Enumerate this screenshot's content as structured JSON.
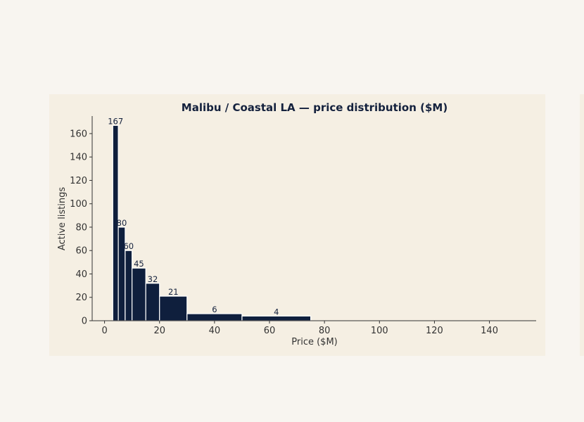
{
  "chart_data": {
    "type": "bar",
    "title": "Malibu / Coastal LA — price distribution ($M)",
    "xlabel": "Price ($M)",
    "ylabel": "Active listings",
    "xlim": [
      -4.5,
      157
    ],
    "ylim": [
      0,
      175
    ],
    "xticks": [
      0,
      20,
      40,
      60,
      80,
      100,
      120,
      140
    ],
    "yticks": [
      0,
      20,
      40,
      60,
      80,
      100,
      120,
      140,
      160
    ],
    "bins": [
      {
        "x0": 3,
        "x1": 5,
        "value": 167,
        "label": "167"
      },
      {
        "x0": 5,
        "x1": 7.5,
        "value": 80,
        "label": "80"
      },
      {
        "x0": 7.5,
        "x1": 10,
        "value": 60,
        "label": "60"
      },
      {
        "x0": 10,
        "x1": 15,
        "value": 45,
        "label": "45"
      },
      {
        "x0": 15,
        "x1": 20,
        "value": 32,
        "label": "32"
      },
      {
        "x0": 20,
        "x1": 30,
        "value": 21,
        "label": "21"
      },
      {
        "x0": 30,
        "x1": 50,
        "value": 6,
        "label": "6"
      },
      {
        "x0": 50,
        "x1": 75,
        "value": 4,
        "label": "4"
      }
    ],
    "bar_color": "#0f1f3d",
    "edge_color": "#ffffff",
    "background": "#f5efe3",
    "grid": false
  }
}
